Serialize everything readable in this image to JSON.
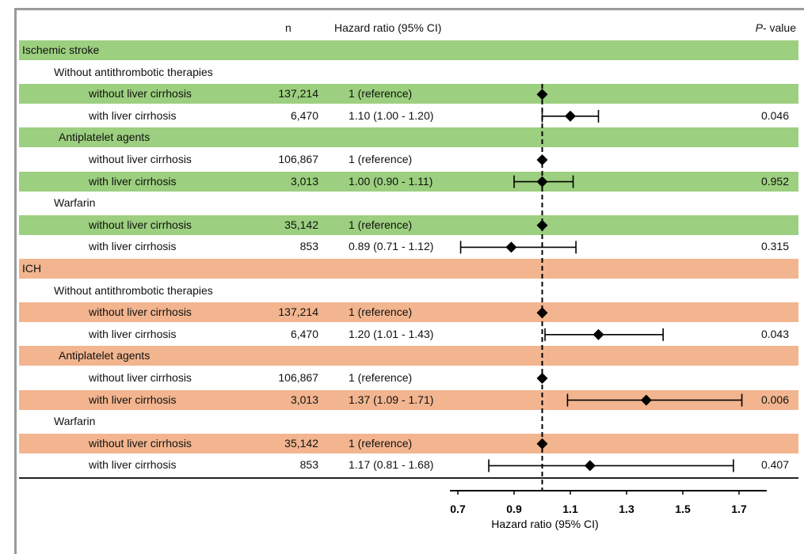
{
  "header": {
    "col_n": "n",
    "col_hr": "Hazard ratio (95% CI)",
    "col_p_italic": "P",
    "col_p_rest": "- value"
  },
  "chart_data": {
    "type": "forest",
    "xlabel": "Hazard ratio (95% CI)",
    "xlim": [
      0.7,
      1.8
    ],
    "xticks": [
      "0.7",
      "0.9",
      "1.1",
      "1.3",
      "1.5",
      "1.7"
    ],
    "reference_line": 1.0,
    "rows": [
      {
        "label": "Ischemic stroke",
        "level": "section",
        "bg": "green"
      },
      {
        "label": "Without antithrombotic therapies",
        "level": "sub",
        "bg": "none"
      },
      {
        "label": "without liver cirrhosis",
        "level": "item",
        "bg": "green",
        "n": "137,214",
        "hr_text": "1 (reference)",
        "hr": 1.0,
        "lo": null,
        "hi": null,
        "p": ""
      },
      {
        "label": "with liver cirrhosis",
        "level": "item",
        "bg": "none",
        "n": "6,470",
        "hr_text": "1.10 (1.00 - 1.20)",
        "hr": 1.1,
        "lo": 1.0,
        "hi": 1.2,
        "p": "0.046"
      },
      {
        "label": "Antiplatelet agents",
        "level": "sub2",
        "bg": "green"
      },
      {
        "label": "without liver cirrhosis",
        "level": "item",
        "bg": "none",
        "n": "106,867",
        "hr_text": "1 (reference)",
        "hr": 1.0,
        "lo": null,
        "hi": null,
        "p": ""
      },
      {
        "label": "with liver cirrhosis",
        "level": "item",
        "bg": "green",
        "n": "3,013",
        "hr_text": "1.00 (0.90 - 1.11)",
        "hr": 1.0,
        "lo": 0.9,
        "hi": 1.11,
        "p": "0.952"
      },
      {
        "label": "Warfarin",
        "level": "sub3",
        "bg": "none"
      },
      {
        "label": "without liver cirrhosis",
        "level": "item",
        "bg": "green",
        "n": "35,142",
        "hr_text": "1 (reference)",
        "hr": 1.0,
        "lo": null,
        "hi": null,
        "p": ""
      },
      {
        "label": "with liver cirrhosis",
        "level": "item",
        "bg": "none",
        "n": "853",
        "hr_text": "0.89 (0.71 - 1.12)",
        "hr": 0.89,
        "lo": 0.71,
        "hi": 1.12,
        "p": "0.315"
      },
      {
        "label": "ICH",
        "level": "section",
        "bg": "orange"
      },
      {
        "label": "Without antithrombotic therapies",
        "level": "sub",
        "bg": "none"
      },
      {
        "label": "without liver cirrhosis",
        "level": "item",
        "bg": "orange",
        "n": "137,214",
        "hr_text": "1 (reference)",
        "hr": 1.0,
        "lo": null,
        "hi": null,
        "p": ""
      },
      {
        "label": "with liver cirrhosis",
        "level": "item",
        "bg": "none",
        "n": "6,470",
        "hr_text": "1.20 (1.01 - 1.43)",
        "hr": 1.2,
        "lo": 1.01,
        "hi": 1.43,
        "p": "0.043"
      },
      {
        "label": "Antiplatelet agents",
        "level": "sub2",
        "bg": "orange"
      },
      {
        "label": "without liver cirrhosis",
        "level": "item",
        "bg": "none",
        "n": "106,867",
        "hr_text": "1 (reference)",
        "hr": 1.0,
        "lo": null,
        "hi": null,
        "p": ""
      },
      {
        "label": "with liver cirrhosis",
        "level": "item",
        "bg": "orange",
        "n": "3,013",
        "hr_text": "1.37 (1.09 - 1.71)",
        "hr": 1.37,
        "lo": 1.09,
        "hi": 1.71,
        "p": "0.006"
      },
      {
        "label": "Warfarin",
        "level": "sub3",
        "bg": "none"
      },
      {
        "label": "without liver cirrhosis",
        "level": "item",
        "bg": "orange",
        "n": "35,142",
        "hr_text": "1 (reference)",
        "hr": 1.0,
        "lo": null,
        "hi": null,
        "p": ""
      },
      {
        "label": "with liver cirrhosis",
        "level": "item",
        "bg": "none",
        "n": "853",
        "hr_text": "1.17 (0.81 - 1.68)",
        "hr": 1.17,
        "lo": 0.81,
        "hi": 1.68,
        "p": "0.407"
      }
    ]
  },
  "colors": {
    "green": "#9ccf7f",
    "orange": "#f2b58f",
    "marker": "#000000"
  }
}
